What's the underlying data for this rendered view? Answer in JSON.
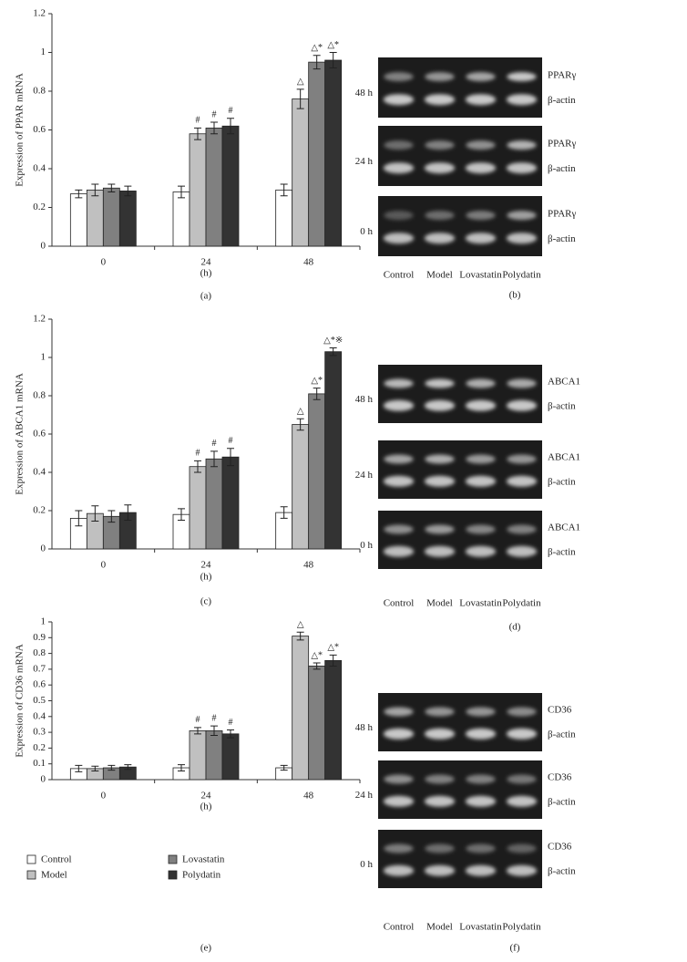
{
  "chart_data": [
    {
      "type": "bar",
      "panel_label": "(a)",
      "y_label": "Expression of PPAR mRNA",
      "x_label": "(h)",
      "categories": [
        "0",
        "24",
        "48"
      ],
      "ylim": [
        0,
        1.2
      ],
      "yticks": [
        0,
        0.2,
        0.4,
        0.6,
        0.8,
        1,
        1.2
      ],
      "legend": false,
      "series": [
        {
          "name": "Control",
          "color": "#ffffff",
          "values": [
            0.27,
            0.28,
            0.29
          ],
          "errors": [
            0.02,
            0.03,
            0.03
          ],
          "annotations": [
            null,
            null,
            null
          ]
        },
        {
          "name": "Model",
          "color": "#c0c0c0",
          "values": [
            0.29,
            0.58,
            0.76
          ],
          "errors": [
            0.03,
            0.03,
            0.05
          ],
          "annotations": [
            null,
            "#",
            "△"
          ]
        },
        {
          "name": "Lovastatin",
          "color": "#808080",
          "values": [
            0.3,
            0.61,
            0.95
          ],
          "errors": [
            0.02,
            0.03,
            0.035
          ],
          "annotations": [
            null,
            "#",
            "△*"
          ]
        },
        {
          "name": "Polydatin",
          "color": "#333333",
          "values": [
            0.285,
            0.62,
            0.96
          ],
          "errors": [
            0.025,
            0.04,
            0.04
          ],
          "annotations": [
            null,
            "#",
            "△*"
          ]
        }
      ]
    },
    {
      "type": "bar",
      "panel_label": "(c)",
      "y_label": "Expression of ABCA1 mRNA",
      "x_label": "(h)",
      "categories": [
        "0",
        "24",
        "48"
      ],
      "ylim": [
        0,
        1.2
      ],
      "yticks": [
        0,
        0.2,
        0.4,
        0.6,
        0.8,
        1,
        1.2
      ],
      "legend": false,
      "series": [
        {
          "name": "Control",
          "color": "#ffffff",
          "values": [
            0.16,
            0.18,
            0.19
          ],
          "errors": [
            0.04,
            0.03,
            0.03
          ],
          "annotations": [
            null,
            null,
            null
          ]
        },
        {
          "name": "Model",
          "color": "#c0c0c0",
          "values": [
            0.185,
            0.43,
            0.65
          ],
          "errors": [
            0.04,
            0.03,
            0.03
          ],
          "annotations": [
            null,
            "#",
            "△"
          ]
        },
        {
          "name": "Lovastatin",
          "color": "#808080",
          "values": [
            0.17,
            0.47,
            0.81
          ],
          "errors": [
            0.03,
            0.04,
            0.03
          ],
          "annotations": [
            null,
            "#",
            "△*"
          ]
        },
        {
          "name": "Polydatin",
          "color": "#333333",
          "values": [
            0.19,
            0.48,
            1.03
          ],
          "errors": [
            0.04,
            0.045,
            0.02
          ],
          "annotations": [
            null,
            "#",
            "△*※"
          ]
        }
      ]
    },
    {
      "type": "bar",
      "panel_label": "(e)",
      "y_label": "Expression of CD36 mRNA",
      "x_label": "(h)",
      "categories": [
        "0",
        "24",
        "48"
      ],
      "ylim": [
        0,
        1
      ],
      "yticks": [
        0,
        0.1,
        0.2,
        0.3,
        0.4,
        0.5,
        0.6,
        0.7,
        0.8,
        0.9,
        1
      ],
      "legend": true,
      "series": [
        {
          "name": "Control",
          "color": "#ffffff",
          "values": [
            0.07,
            0.075,
            0.075
          ],
          "errors": [
            0.02,
            0.02,
            0.015
          ],
          "annotations": [
            null,
            null,
            null
          ]
        },
        {
          "name": "Model",
          "color": "#c0c0c0",
          "values": [
            0.07,
            0.31,
            0.91
          ],
          "errors": [
            0.015,
            0.02,
            0.025
          ],
          "annotations": [
            null,
            "#",
            "△"
          ]
        },
        {
          "name": "Lovastatin",
          "color": "#808080",
          "values": [
            0.075,
            0.31,
            0.72
          ],
          "errors": [
            0.015,
            0.03,
            0.02
          ],
          "annotations": [
            null,
            "#",
            "△*"
          ]
        },
        {
          "name": "Polydatin",
          "color": "#333333",
          "values": [
            0.08,
            0.29,
            0.755
          ],
          "errors": [
            0.015,
            0.025,
            0.035
          ],
          "annotations": [
            null,
            "#",
            "△*"
          ]
        }
      ]
    }
  ],
  "gels": [
    {
      "panel_label": "(b)",
      "lanes": [
        "Control",
        "Model",
        "Lovastatin",
        "Polydatin"
      ],
      "blocks": [
        {
          "time": "48 h",
          "bands": [
            "PPARγ",
            "β-actin"
          ]
        },
        {
          "time": "24 h",
          "bands": [
            "PPARγ",
            "β-actin"
          ]
        },
        {
          "time": "0 h",
          "bands": [
            "PPARγ",
            "β-actin"
          ]
        }
      ]
    },
    {
      "panel_label": "(d)",
      "lanes": [
        "Control",
        "Model",
        "Lovastatin",
        "Polydatin"
      ],
      "blocks": [
        {
          "time": "48 h",
          "bands": [
            "ABCA1",
            "β-actin"
          ]
        },
        {
          "time": "24 h",
          "bands": [
            "ABCA1",
            "β-actin"
          ]
        },
        {
          "time": "0 h",
          "bands": [
            "ABCA1",
            "β-actin"
          ]
        }
      ]
    },
    {
      "panel_label": "(f)",
      "lanes": [
        "Control",
        "Model",
        "Lovastatin",
        "Polydatin"
      ],
      "blocks": [
        {
          "time": "48 h",
          "bands": [
            "CD36",
            "β-actin"
          ]
        },
        {
          "time": "24 h",
          "bands": [
            "CD36",
            "β-actin"
          ]
        },
        {
          "time": "0 h",
          "bands": [
            "CD36",
            "β-actin"
          ]
        }
      ]
    }
  ]
}
